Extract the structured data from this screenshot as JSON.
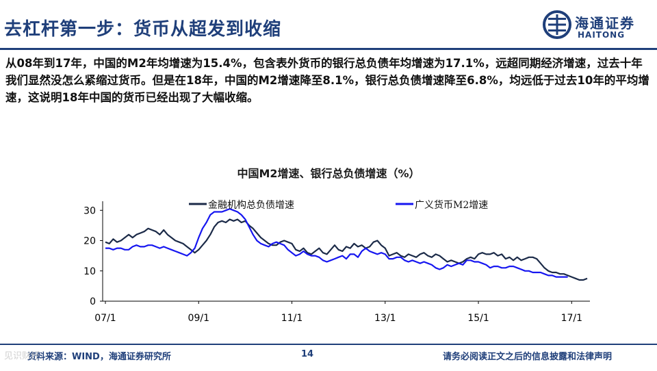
{
  "slide": {
    "title": "去杠杆第一步：货币从超发到收缩",
    "logo": {
      "cn": "海通证券",
      "en": "HAITONG"
    },
    "body_text": "从08年到17年，中国的M2年均增速为15.4%，包含表外货币的银行总负债年均增速为17.1%，远超同期经济增速，过去十年我们显然没怎么紧缩过货币。但是在18年，中国的M2增速降至8.1%，银行总负债增速降至6.8%，均远低于过去10年的平均增速，这说明18年中国的货币已经出现了大幅收缩。",
    "footer": {
      "source": "资料来源：WIND，海通证券研究所",
      "page_number": "14",
      "disclaimer": "请务必阅读正文之后的信息披露和法律声明"
    },
    "watermark": "见识财经",
    "colors": {
      "brand": "#1f3f7a",
      "series_bank": "#1b2a48",
      "series_m2": "#1616f0"
    }
  },
  "chart_data": {
    "type": "line",
    "title": "中国M2增速、银行总负债增速（%）",
    "xlabel": "",
    "ylabel": "",
    "ylim": [
      0,
      33
    ],
    "yticks": [
      0,
      10,
      20,
      30
    ],
    "xticks": [
      "07/1",
      "09/1",
      "11/1",
      "13/1",
      "15/1",
      "17/1"
    ],
    "x_start": "07/1",
    "x_end": "18/9",
    "legend_position": "top",
    "grid": false,
    "series": [
      {
        "name": "金融机构总负债增速",
        "color": "#1b2a48",
        "values": [
          19.5,
          19,
          20.5,
          19.5,
          20,
          21,
          22,
          21,
          22,
          22.5,
          23,
          24,
          23.5,
          23,
          22,
          23.5,
          22,
          21,
          20,
          19.5,
          19,
          18,
          17,
          16,
          17,
          18.5,
          20,
          22,
          24.5,
          26,
          26.5,
          26,
          27,
          26.5,
          27,
          26,
          26.5,
          25,
          24,
          22.5,
          21,
          20,
          19,
          18.5,
          18.5,
          19.5,
          20,
          19.5,
          19,
          17,
          16.5,
          17.5,
          16,
          15.5,
          16.5,
          17.5,
          16,
          15.5,
          17,
          18.5,
          17,
          16.5,
          18,
          17.5,
          19,
          18,
          18.5,
          17.5,
          18,
          19.5,
          20,
          18.5,
          17.5,
          15,
          15.5,
          16,
          15,
          14.5,
          15.5,
          15,
          14.5,
          15.5,
          16,
          15,
          14.5,
          15.5,
          15,
          14,
          13,
          13.5,
          13,
          12.5,
          13,
          14,
          14.5,
          14,
          15.5,
          16,
          15.5,
          15.5,
          16,
          15,
          15.5,
          14,
          14.5,
          13.5,
          14.5,
          13.5,
          14,
          14.5,
          14.5,
          14,
          12.5,
          11,
          10,
          9.5,
          9.5,
          9,
          9,
          8.5,
          8,
          7.5,
          7,
          7,
          7.5
        ]
      },
      {
        "name": "广义货币M2增速",
        "color": "#1616f0",
        "values": [
          17.5,
          17.5,
          17,
          17.5,
          17.5,
          17,
          17,
          18,
          18.5,
          18,
          18,
          18.5,
          18.5,
          18,
          17.5,
          18,
          17.5,
          17,
          16.5,
          16,
          15.5,
          15,
          16,
          17.5,
          21,
          24,
          26,
          28.5,
          29.5,
          29.5,
          29.5,
          30,
          30.5,
          30,
          29.5,
          28.5,
          27,
          24.5,
          22,
          20,
          19,
          18.5,
          18,
          19,
          19.5,
          19,
          18.5,
          17,
          16,
          15,
          15.5,
          16.5,
          15.5,
          15,
          15,
          14.5,
          13.5,
          13,
          13.5,
          14,
          14.5,
          15,
          14,
          15.5,
          15.5,
          14.5,
          16.5,
          17.5,
          16.5,
          16,
          15.5,
          16,
          15.5,
          14,
          14,
          14.5,
          14.5,
          13.5,
          13,
          13.5,
          13,
          12.5,
          13,
          12.5,
          12,
          11,
          10.5,
          11,
          12,
          11.5,
          12,
          12.5,
          12,
          13.5,
          13.5,
          13,
          13,
          12.5,
          12,
          11,
          11.5,
          11.5,
          11,
          11,
          11.5,
          11.5,
          11,
          10.5,
          10,
          10,
          9.5,
          9.5,
          9.5,
          9,
          8.5,
          8.5,
          8,
          8,
          8,
          8
        ]
      }
    ]
  }
}
